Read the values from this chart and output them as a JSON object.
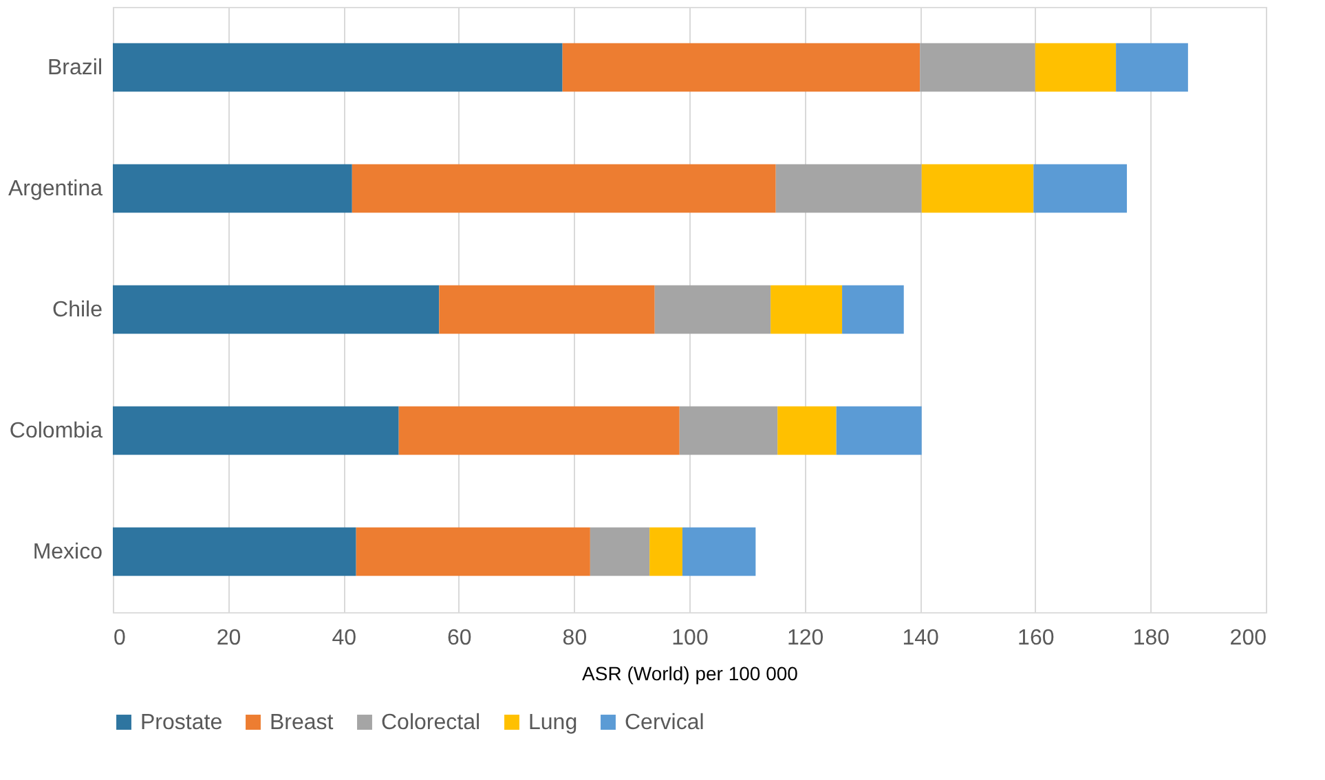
{
  "chart_data": {
    "type": "bar",
    "orientation": "horizontal",
    "stacked": true,
    "xlabel": "ASR (World) per 100 000",
    "categories": [
      "Brazil",
      "Argentina",
      "Chile",
      "Colombia",
      "Mexico"
    ],
    "series": [
      {
        "name": "Prostate",
        "color": "#2e75a0",
        "values": [
          78,
          41.5,
          56.6,
          49.6,
          42.2
        ]
      },
      {
        "name": "Breast",
        "color": "#ed7d31",
        "values": [
          62,
          73.5,
          37.4,
          48.7,
          40.6
        ]
      },
      {
        "name": "Colorectal",
        "color": "#a5a5a5",
        "values": [
          20,
          25.3,
          20.1,
          17,
          10.3
        ]
      },
      {
        "name": "Lung",
        "color": "#ffc000",
        "values": [
          14,
          19.4,
          12.4,
          10.2,
          5.7
        ]
      },
      {
        "name": "Cervical",
        "color": "#5b9bd5",
        "values": [
          12.5,
          16.2,
          10.7,
          14.8,
          12.7
        ]
      }
    ],
    "xlim": [
      0,
      200
    ],
    "xticks": [
      0,
      20,
      40,
      60,
      80,
      100,
      120,
      140,
      160,
      180,
      200
    ],
    "grid": "x",
    "legend": "bottom"
  }
}
